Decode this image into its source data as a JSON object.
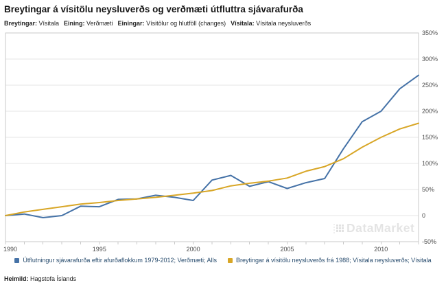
{
  "header": {
    "title": "Breytingar á vísitölu neysluverðs og verðmæti útfluttra sjávarafurða",
    "meta": [
      {
        "label": "Breytingar:",
        "value": "Vísitala"
      },
      {
        "label": "Eining:",
        "value": "Verðmæti"
      },
      {
        "label": "Einingar:",
        "value": "Vísitölur og hlutföll (changes)"
      },
      {
        "label": "Vísitala:",
        "value": "Vísitala neysluverðs"
      }
    ]
  },
  "chart_data": {
    "type": "line",
    "title": "Breytingar á vísitölu neysluverðs og verðmæti útfluttra sjávarafurða",
    "x": [
      1990,
      1991,
      1992,
      1993,
      1994,
      1995,
      1996,
      1997,
      1998,
      1999,
      2000,
      2001,
      2002,
      2003,
      2004,
      2005,
      2006,
      2007,
      2008,
      2009,
      2010,
      2011,
      2012
    ],
    "series": [
      {
        "id": "export-value",
        "name": "Útflutningur sjávarafurða eftir afurðaflokkum 1979-2012; Verðmæti; Alls",
        "color": "#4572A7",
        "values": [
          0,
          3,
          -4,
          0,
          18,
          17,
          31,
          32,
          39,
          35,
          29,
          68,
          77,
          56,
          65,
          52,
          63,
          71,
          128,
          180,
          200,
          243,
          269
        ]
      },
      {
        "id": "cpi",
        "name": "Breytingar á vísitölu neysluverðs frá 1988; Vísitala neysluverðs; Vísitala",
        "color": "#D8A626",
        "values": [
          0,
          7,
          12,
          17,
          22,
          25,
          29,
          32,
          35,
          39,
          43,
          48,
          57,
          62,
          66,
          72,
          85,
          94,
          109,
          131,
          150,
          166,
          177
        ]
      }
    ],
    "ylim": [
      -50,
      350
    ],
    "yticks": [
      {
        "v": 350,
        "label": "350%"
      },
      {
        "v": 300,
        "label": "300%"
      },
      {
        "v": 250,
        "label": "250%"
      },
      {
        "v": 200,
        "label": "200%"
      },
      {
        "v": 150,
        "label": "150%"
      },
      {
        "v": 100,
        "label": "100%"
      },
      {
        "v": 50,
        "label": "50%"
      },
      {
        "v": 0,
        "label": "0"
      },
      {
        "v": -50,
        "label": "-50%"
      }
    ],
    "xticklabels": [
      1990,
      1995,
      2000,
      2005,
      2010
    ],
    "grid": true,
    "legend_position": "bottom",
    "colors": {
      "grid": "#e5e5e5",
      "border": "#c9c9c9",
      "axis_text": "#4d4d4d"
    }
  },
  "watermark": {
    "text": "DataMarket"
  },
  "footer": {
    "label": "Heimild:",
    "value": "Hagstofa Íslands"
  }
}
